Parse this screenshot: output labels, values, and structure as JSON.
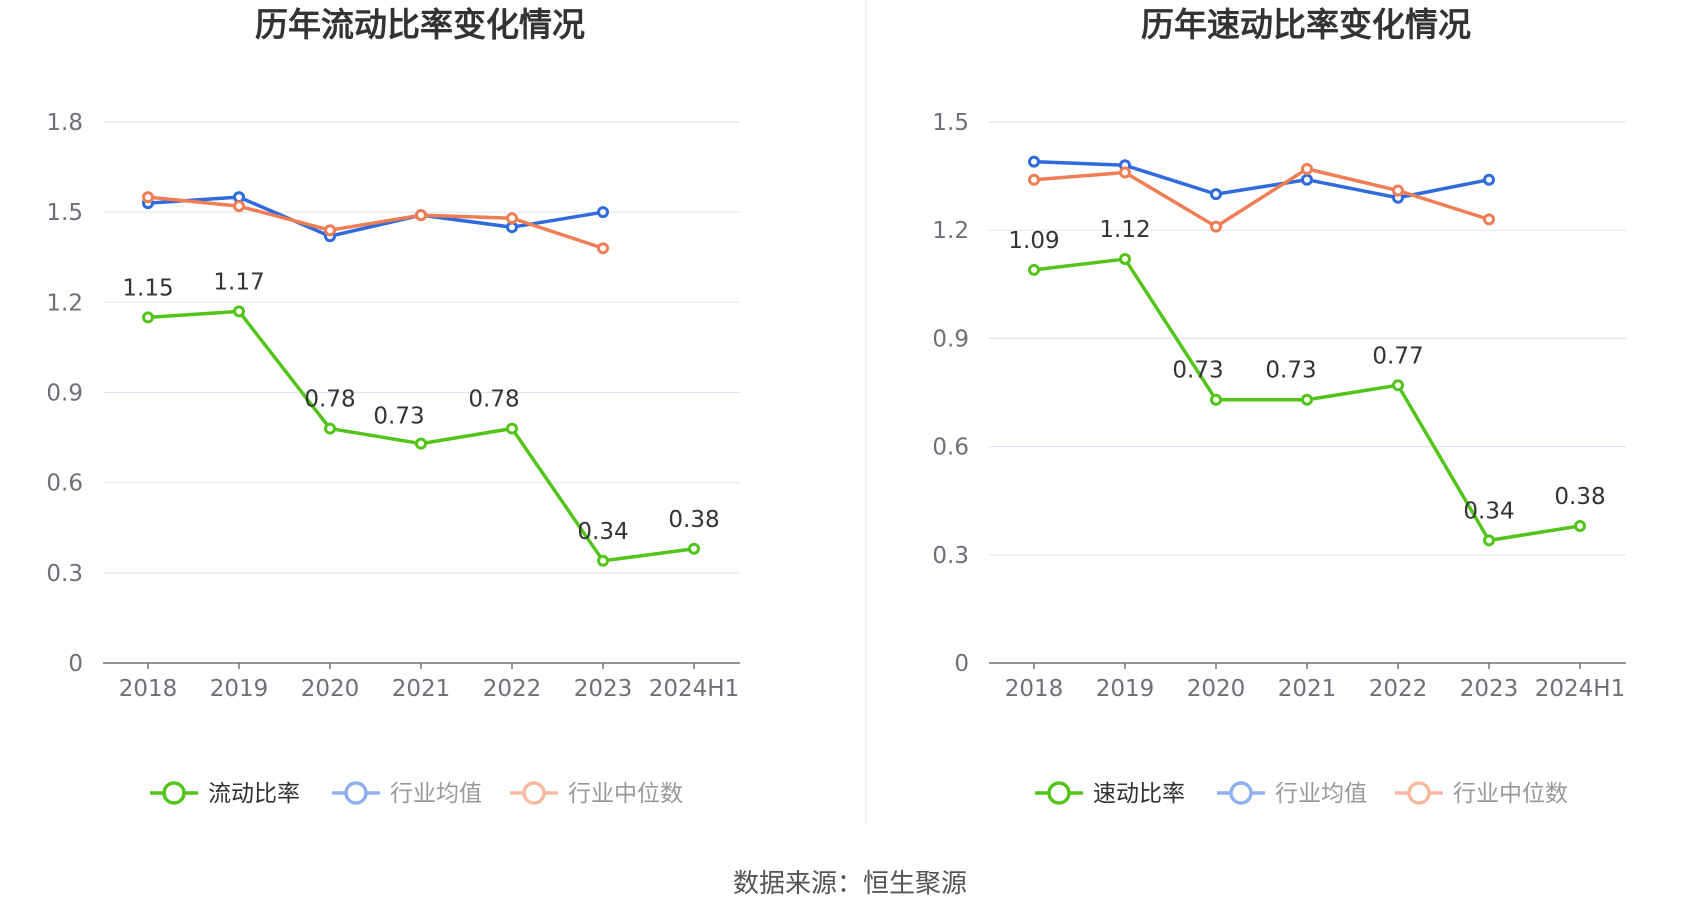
{
  "chart_data": [
    {
      "type": "line",
      "title": "历年流动比率变化情况",
      "categories": [
        "2018",
        "2019",
        "2020",
        "2021",
        "2022",
        "2023",
        "2024H1"
      ],
      "ylim": [
        0,
        1.8
      ],
      "yticks": [
        "0",
        "0.3",
        "0.6",
        "0.9",
        "1.2",
        "1.5",
        "1.8"
      ],
      "grid": true,
      "legend_position": "bottom",
      "series": [
        {
          "name": "流动比率",
          "color": "#52c41a",
          "values": [
            1.15,
            1.17,
            0.78,
            0.73,
            0.78,
            0.34,
            0.38
          ],
          "labels": [
            "1.15",
            "1.17",
            "0.78",
            "0.73",
            "0.78",
            "0.34",
            "0.38"
          ]
        },
        {
          "name": "行业均值",
          "color": "#2f6bdc",
          "values": [
            1.53,
            1.55,
            1.42,
            1.49,
            1.45,
            1.5,
            null
          ]
        },
        {
          "name": "行业中位数",
          "color": "#f07e55",
          "values": [
            1.55,
            1.52,
            1.44,
            1.49,
            1.48,
            1.38,
            null
          ]
        }
      ]
    },
    {
      "type": "line",
      "title": "历年速动比率变化情况",
      "categories": [
        "2018",
        "2019",
        "2020",
        "2021",
        "2022",
        "2023",
        "2024H1"
      ],
      "ylim": [
        0,
        1.5
      ],
      "yticks": [
        "0",
        "0.3",
        "0.6",
        "0.9",
        "1.2",
        "1.5"
      ],
      "grid": true,
      "legend_position": "bottom",
      "series": [
        {
          "name": "速动比率",
          "color": "#52c41a",
          "values": [
            1.09,
            1.12,
            0.73,
            0.73,
            0.77,
            0.34,
            0.38
          ],
          "labels": [
            "1.09",
            "1.12",
            "0.73",
            "0.73",
            "0.77",
            "0.34",
            "0.38"
          ]
        },
        {
          "name": "行业均值",
          "color": "#2f6bdc",
          "values": [
            1.39,
            1.38,
            1.3,
            1.34,
            1.29,
            1.34,
            null
          ]
        },
        {
          "name": "行业中位数",
          "color": "#f07e55",
          "values": [
            1.34,
            1.36,
            1.21,
            1.37,
            1.31,
            1.23,
            null
          ]
        }
      ]
    }
  ],
  "legend_colors": {
    "primary_text": "#333333",
    "muted_text": "#999999",
    "muted_blue": "#8fb0ef",
    "muted_orange": "#f7b99f"
  },
  "footer": {
    "source": "数据来源：恒生聚源"
  }
}
